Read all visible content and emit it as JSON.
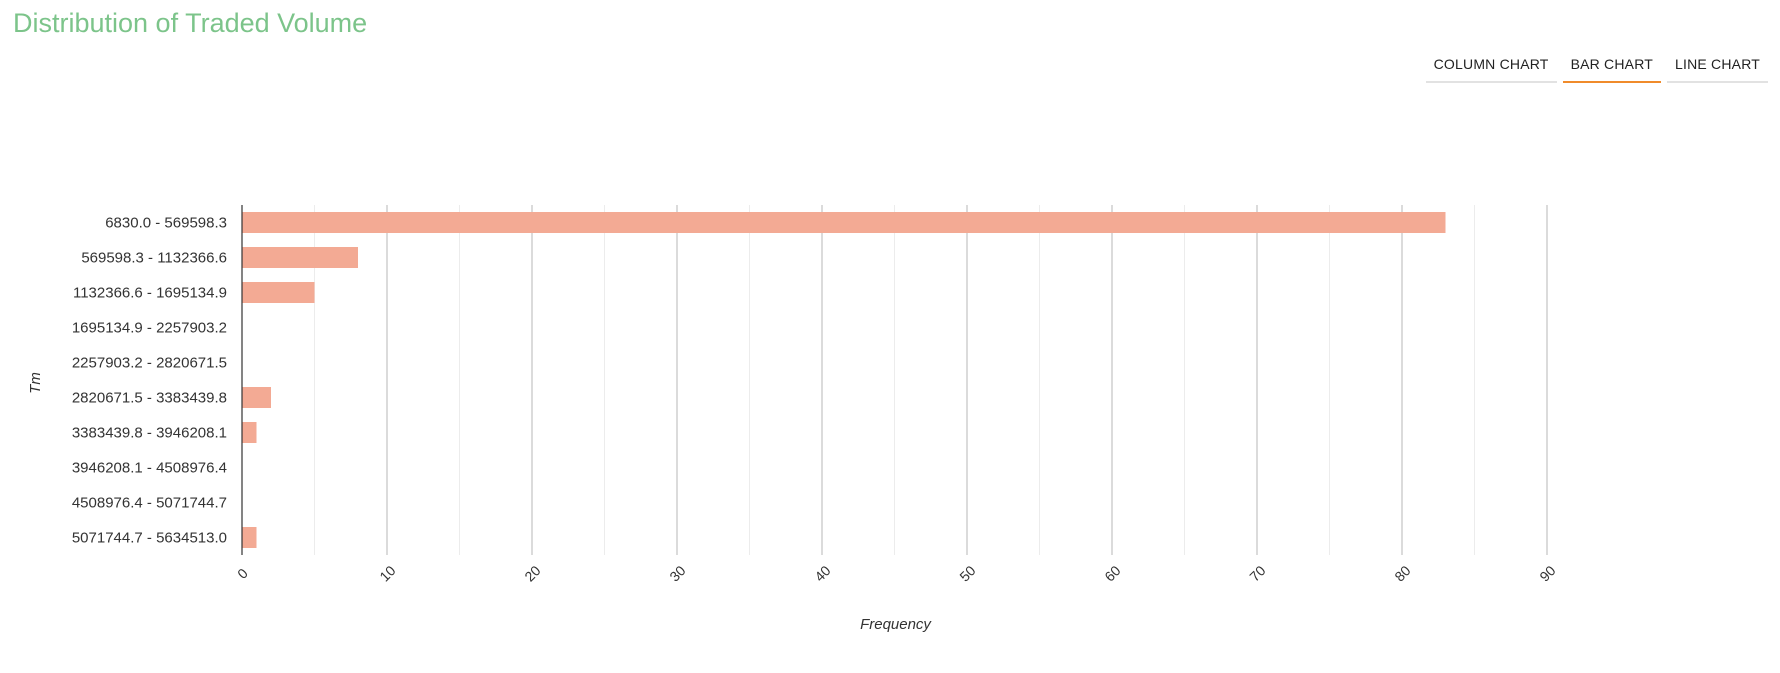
{
  "page": {
    "title": "Distribution of Traded Volume"
  },
  "tabs": [
    {
      "label": "COLUMN CHART",
      "active": false
    },
    {
      "label": "BAR CHART",
      "active": true
    },
    {
      "label": "LINE CHART",
      "active": false
    }
  ],
  "colors": {
    "title": "#7cc48a",
    "bar": "#f3aa94",
    "active_tab_underline": "#f08b2b"
  },
  "chart_data": {
    "type": "bar",
    "orientation": "horizontal",
    "categories": [
      "6830.0 - 569598.3",
      "569598.3 - 1132366.6",
      "1132366.6 - 1695134.9",
      "1695134.9 - 2257903.2",
      "2257903.2 - 2820671.5",
      "2820671.5 - 3383439.8",
      "3383439.8 - 3946208.1",
      "3946208.1 - 4508976.4",
      "4508976.4 - 5071744.7",
      "5071744.7 - 5634513.0"
    ],
    "values": [
      83,
      8,
      5,
      0,
      0,
      2,
      1,
      0,
      0,
      1
    ],
    "xlabel": "Frequency",
    "ylabel": "Tm",
    "xlim": [
      0,
      90
    ],
    "xticks": [
      0,
      10,
      20,
      30,
      40,
      50,
      60,
      70,
      80,
      90
    ],
    "grid": true
  }
}
